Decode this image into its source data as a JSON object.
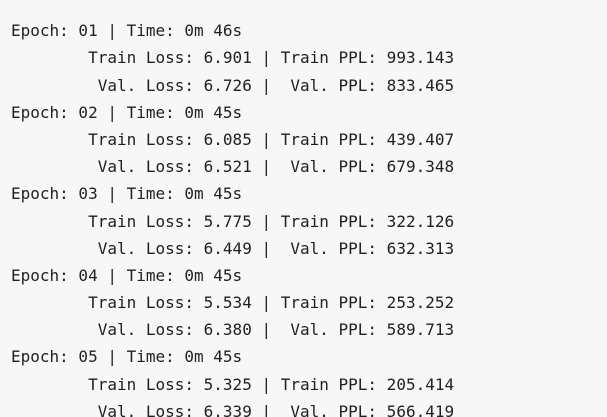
{
  "output": {
    "lines": [
      "",
      "Epoch: 01 | Time: 0m 46s",
      "\tTrain Loss: 6.901 | Train PPL: 993.143",
      "\t Val. Loss: 6.726 |  Val. PPL: 833.465",
      "Epoch: 02 | Time: 0m 45s",
      "\tTrain Loss: 6.085 | Train PPL: 439.407",
      "\t Val. Loss: 6.521 |  Val. PPL: 679.348",
      "Epoch: 03 | Time: 0m 45s",
      "\tTrain Loss: 5.775 | Train PPL: 322.126",
      "\t Val. Loss: 6.449 |  Val. PPL: 632.313",
      "Epoch: 04 | Time: 0m 45s",
      "\tTrain Loss: 5.534 | Train PPL: 253.252",
      "\t Val. Loss: 6.380 |  Val. PPL: 589.713",
      "Epoch: 05 | Time: 0m 45s",
      "\tTrain Loss: 5.325 | Train PPL: 205.414",
      "\t Val. Loss: 6.339 |  Val. PPL: 566.419"
    ]
  }
}
